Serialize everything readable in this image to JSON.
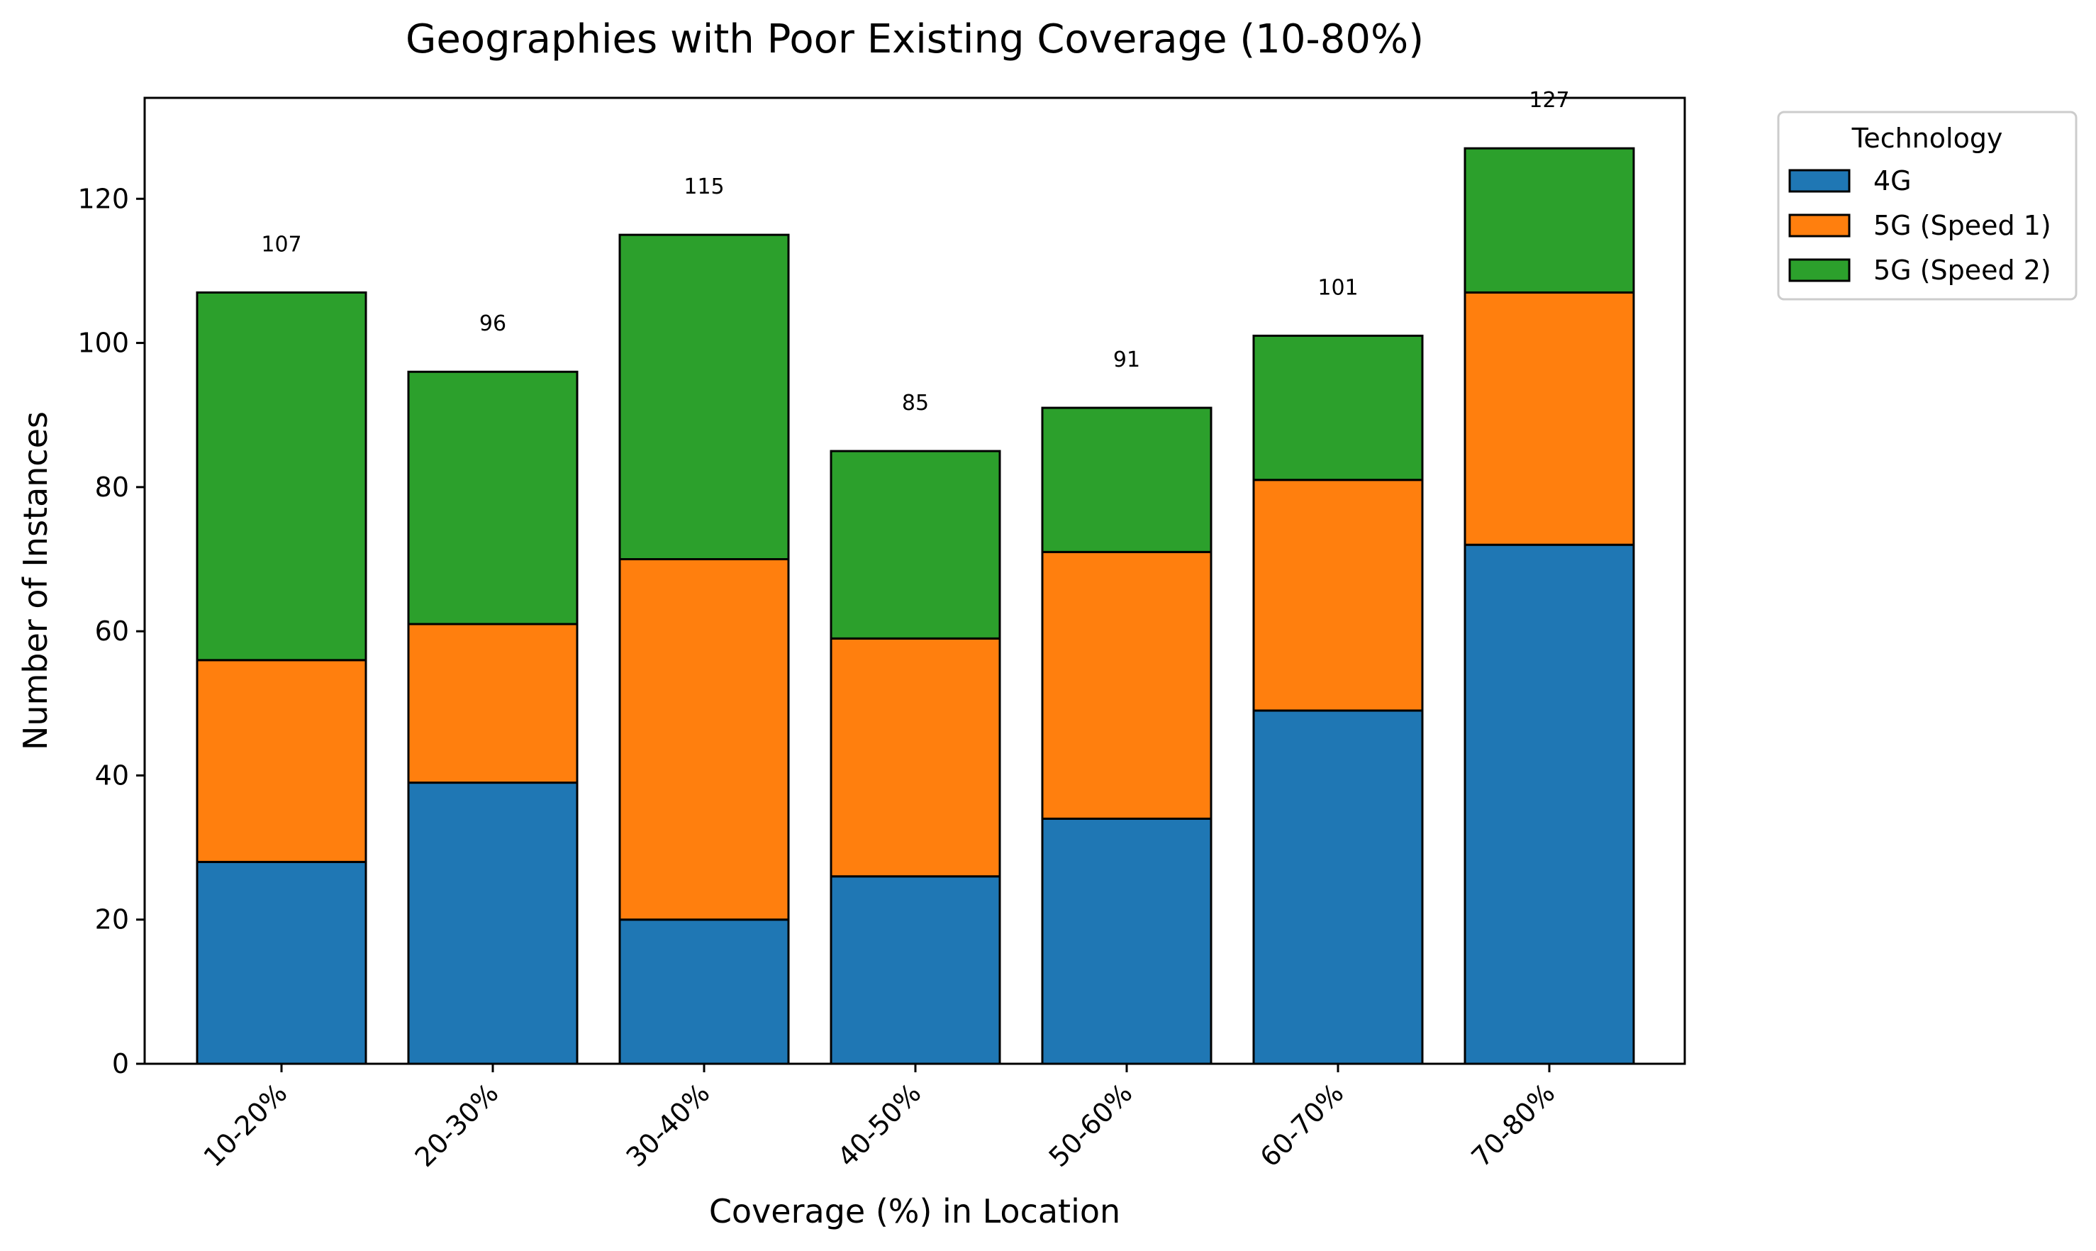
{
  "chart_data": {
    "type": "bar",
    "stacked": true,
    "title": "Geographies with Poor Existing Coverage (10-80%)",
    "xlabel": "Coverage (%) in Location",
    "ylabel": "Number of Instances",
    "categories": [
      "10-20%",
      "20-30%",
      "30-40%",
      "40-50%",
      "50-60%",
      "60-70%",
      "70-80%"
    ],
    "series": [
      {
        "name": "4G",
        "color": "#1f77b4",
        "values": [
          28,
          39,
          20,
          26,
          34,
          49,
          72
        ]
      },
      {
        "name": "5G (Speed 1)",
        "color": "#ff7f0e",
        "values": [
          28,
          22,
          50,
          33,
          37,
          32,
          35
        ]
      },
      {
        "name": "5G (Speed 2)",
        "color": "#2ca02c",
        "values": [
          51,
          35,
          45,
          26,
          20,
          20,
          20
        ]
      }
    ],
    "totals": [
      "107",
      "96",
      "115",
      "85",
      "91",
      "101",
      "127"
    ],
    "ylim": [
      0,
      134
    ],
    "yticks": [
      0,
      20,
      40,
      60,
      80,
      100,
      120
    ],
    "grid": false,
    "legend": {
      "title": "Technology",
      "placement": "outside-top-right"
    },
    "x_tick_rotation": 45
  }
}
